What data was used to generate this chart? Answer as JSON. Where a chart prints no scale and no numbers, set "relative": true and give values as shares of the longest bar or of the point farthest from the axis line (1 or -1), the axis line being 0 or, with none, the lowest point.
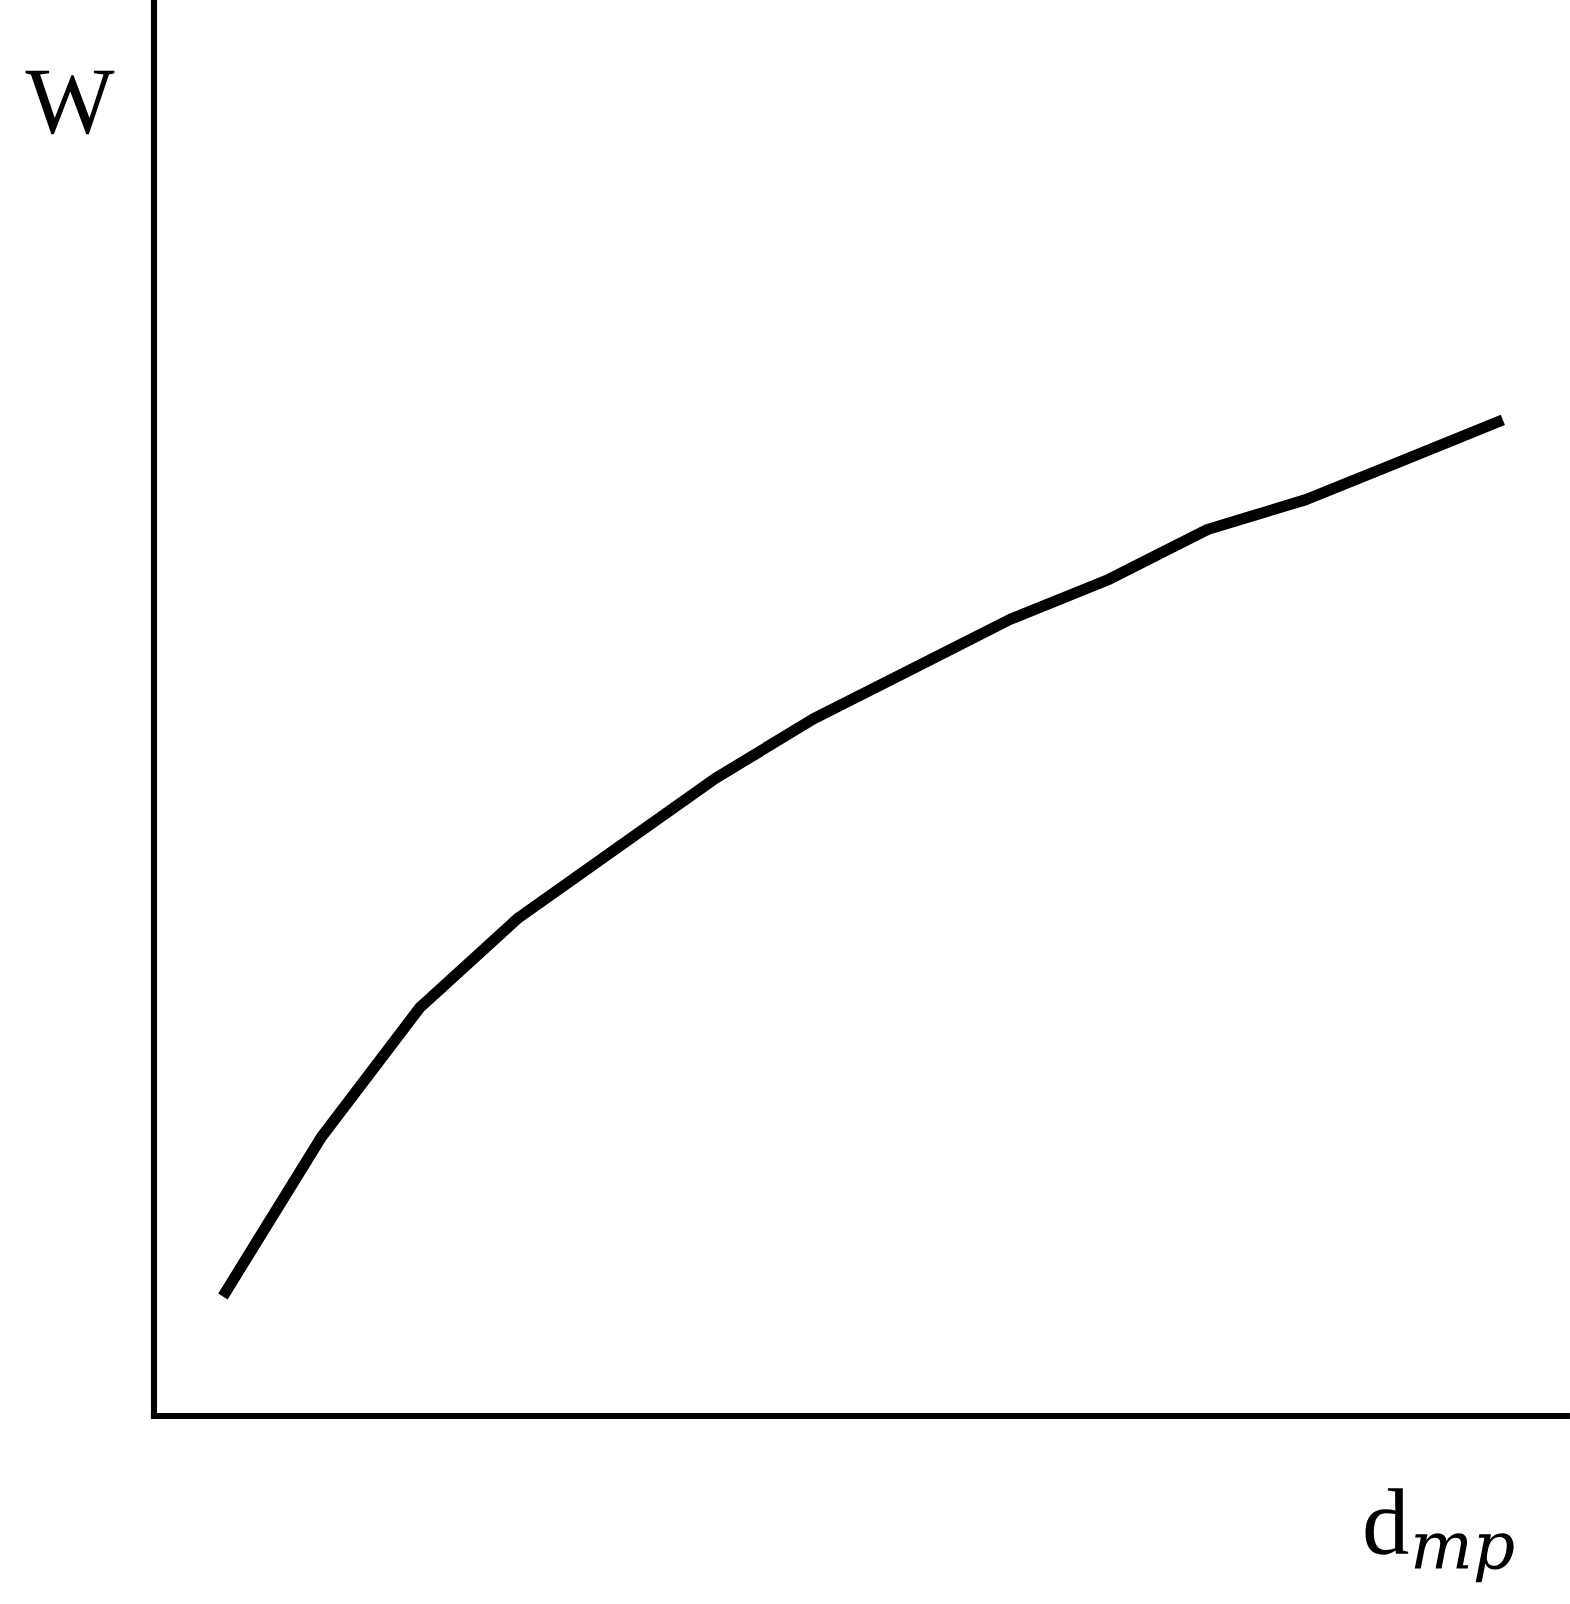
{
  "chart_data": {
    "type": "line",
    "relative": true,
    "xlabel": "d$_{тр}$",
    "ylabel": "W",
    "categories": [
      null,
      null,
      null,
      null,
      null,
      null,
      null,
      null,
      null,
      null,
      null,
      null,
      null,
      null
    ],
    "series": [
      {
        "color": "#000000",
        "values": [
          0.12,
          0.28,
          0.41,
          0.5,
          0.57,
          0.64,
          0.7,
          0.75,
          0.8,
          0.84,
          0.89,
          0.92,
          0.96,
          1.0
        ]
      }
    ],
    "grid": false,
    "legend": false,
    "marker": "none",
    "line_style": "solid"
  }
}
